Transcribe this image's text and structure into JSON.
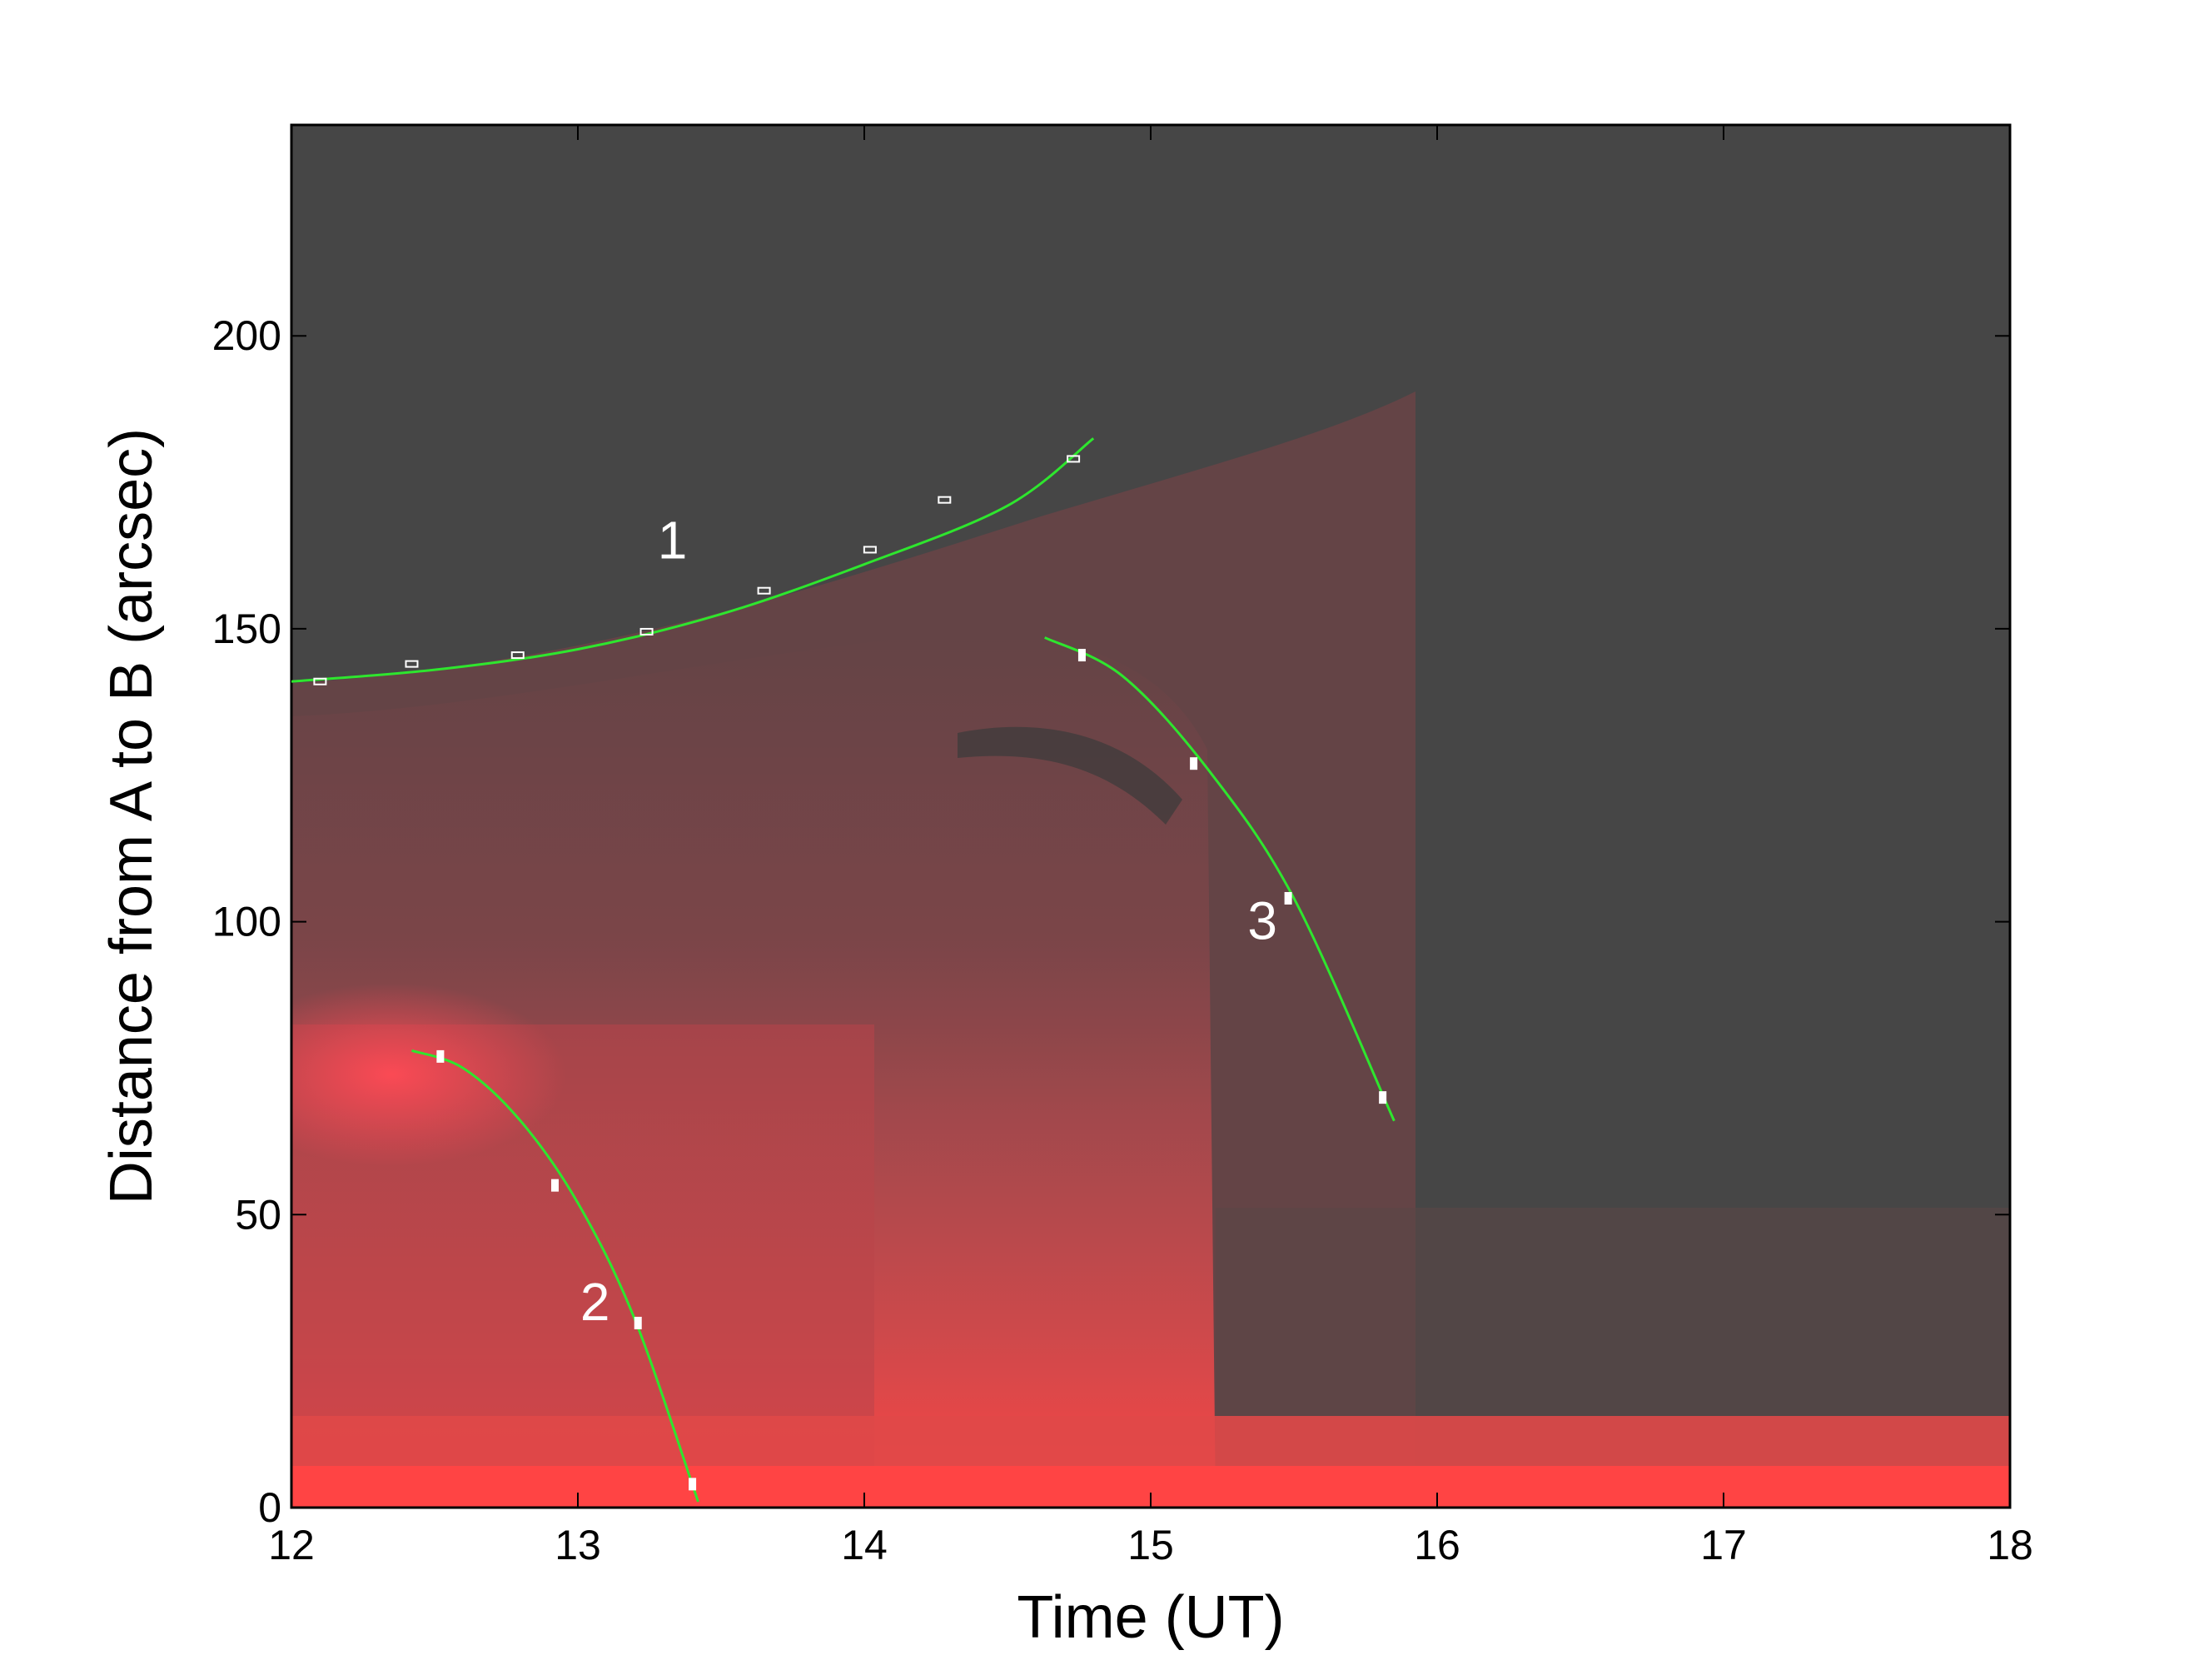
{
  "chart_data": {
    "type": "scatter",
    "title": "",
    "xlabel": "Time (UT)",
    "ylabel": "Distance from A to B (arcsec)",
    "xlim": [
      12,
      18
    ],
    "ylim": [
      0,
      236
    ],
    "xticks": [
      12,
      13,
      14,
      15,
      16,
      17,
      18
    ],
    "yticks": [
      0,
      50,
      100,
      150,
      200
    ],
    "grid": false,
    "background": "time-distance intensity map (red emission on dark gray)",
    "colors": {
      "fit_line": "#2ee62e",
      "marker": "#ffffff",
      "map_dark": "#464646",
      "map_red": "#ff4444"
    },
    "series": [
      {
        "name": "1",
        "points": [
          {
            "x": 12.1,
            "y": 141
          },
          {
            "x": 12.42,
            "y": 144
          },
          {
            "x": 12.79,
            "y": 145.5
          },
          {
            "x": 13.24,
            "y": 149.5
          },
          {
            "x": 13.65,
            "y": 156.5
          },
          {
            "x": 14.02,
            "y": 163.5
          },
          {
            "x": 14.28,
            "y": 172
          },
          {
            "x": 14.73,
            "y": 179
          }
        ],
        "fit": [
          {
            "x": 12.0,
            "y": 141
          },
          {
            "x": 12.5,
            "y": 143
          },
          {
            "x": 13.0,
            "y": 146.5
          },
          {
            "x": 13.5,
            "y": 152.5
          },
          {
            "x": 14.0,
            "y": 161
          },
          {
            "x": 14.5,
            "y": 171
          },
          {
            "x": 14.8,
            "y": 182.5
          }
        ]
      },
      {
        "name": "2",
        "points": [
          {
            "x": 12.52,
            "y": 77
          },
          {
            "x": 12.92,
            "y": 55
          },
          {
            "x": 13.21,
            "y": 31.5
          },
          {
            "x": 13.4,
            "y": 4
          }
        ],
        "fit": [
          {
            "x": 12.42,
            "y": 78
          },
          {
            "x": 12.6,
            "y": 75
          },
          {
            "x": 12.8,
            "y": 66
          },
          {
            "x": 13.0,
            "y": 52
          },
          {
            "x": 13.2,
            "y": 32
          },
          {
            "x": 13.42,
            "y": 1
          }
        ]
      },
      {
        "name": "3",
        "points": [
          {
            "x": 14.76,
            "y": 145.5
          },
          {
            "x": 15.15,
            "y": 127
          },
          {
            "x": 15.48,
            "y": 104
          },
          {
            "x": 15.81,
            "y": 70
          }
        ],
        "fit": [
          {
            "x": 14.63,
            "y": 148.5
          },
          {
            "x": 14.9,
            "y": 142
          },
          {
            "x": 15.2,
            "y": 126
          },
          {
            "x": 15.5,
            "y": 104
          },
          {
            "x": 15.85,
            "y": 66
          }
        ]
      }
    ],
    "annotations": [
      {
        "text": "1",
        "x": 13.33,
        "y": 162
      },
      {
        "text": "2",
        "x": 13.06,
        "y": 32
      },
      {
        "text": "3",
        "x": 15.39,
        "y": 97
      }
    ]
  }
}
